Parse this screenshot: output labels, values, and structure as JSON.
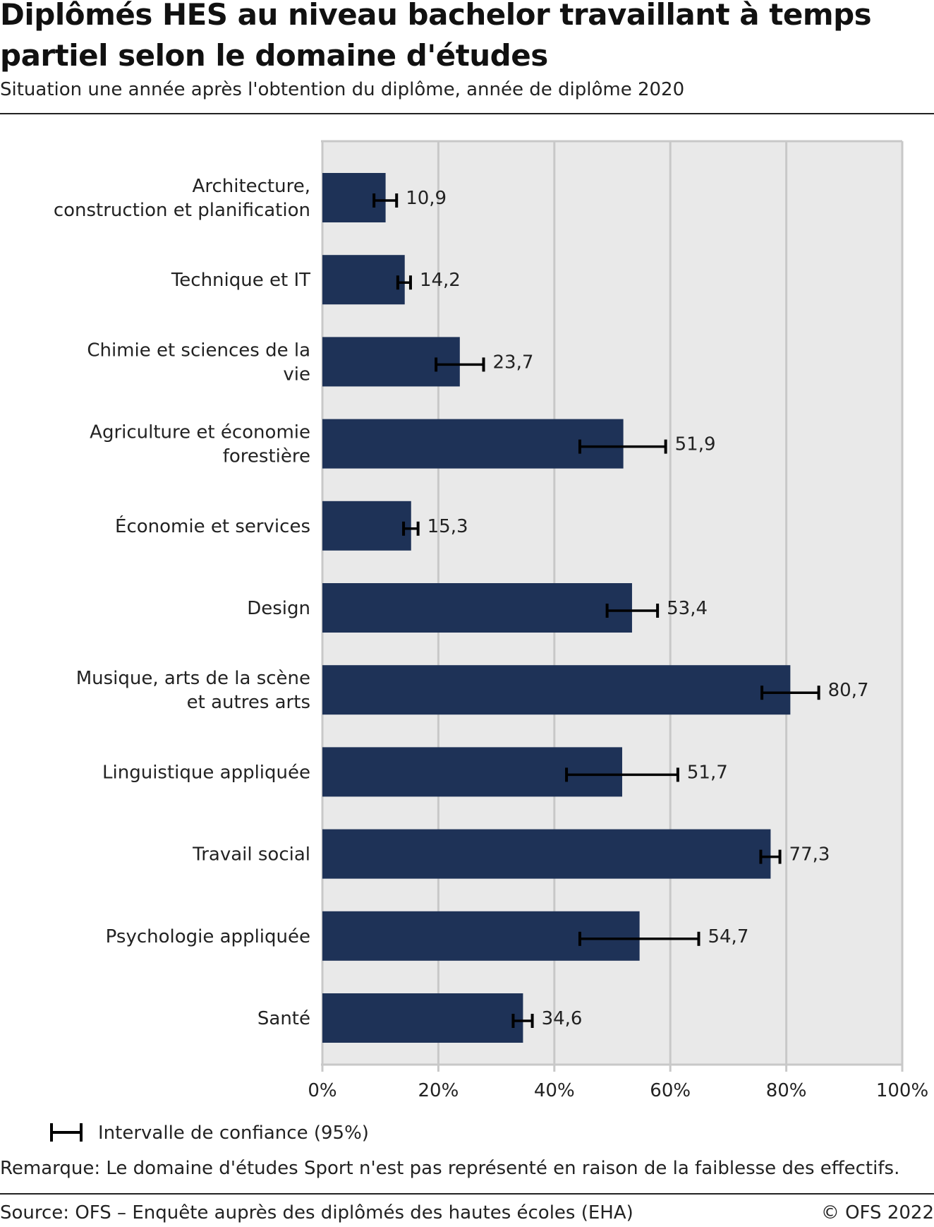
{
  "chart_data": {
    "type": "bar",
    "orientation": "horizontal",
    "title": "Diplômés HES au niveau bachelor travaillant à temps partiel selon le domaine d'études",
    "subtitle": "Situation une année après l'obtention du diplôme, année de diplôme 2020",
    "categories": [
      [
        "Architecture,",
        "construction et planification"
      ],
      [
        "Technique et IT"
      ],
      [
        "Chimie et sciences de la",
        "vie"
      ],
      [
        "Agriculture et économie",
        "forestière"
      ],
      [
        "Économie et services"
      ],
      [
        "Design"
      ],
      [
        "Musique, arts de la scène",
        "et autres arts"
      ],
      [
        "Linguistique appliquée"
      ],
      [
        "Travail social"
      ],
      [
        "Psychologie appliquée"
      ],
      [
        "Santé"
      ]
    ],
    "values": [
      10.9,
      14.2,
      23.7,
      51.9,
      15.3,
      53.4,
      80.7,
      51.7,
      77.3,
      54.7,
      34.6
    ],
    "value_labels": [
      "10,9",
      "14,2",
      "23,7",
      "51,9",
      "15,3",
      "53,4",
      "80,7",
      "51,7",
      "77,3",
      "54,7",
      "34,6"
    ],
    "ci_low": [
      8.9,
      13.0,
      19.6,
      44.4,
      14.0,
      49.1,
      75.8,
      42.1,
      75.6,
      44.4,
      32.9
    ],
    "ci_high": [
      12.8,
      15.2,
      27.8,
      59.2,
      16.5,
      57.8,
      85.6,
      61.3,
      78.9,
      64.9,
      36.2
    ],
    "xlim": [
      0,
      100
    ],
    "xticks": [
      "0%",
      "20%",
      "40%",
      "60%",
      "80%",
      "100%"
    ],
    "grid": true,
    "bar_color": "#1e3257",
    "plot_background": "#e9e9e9",
    "legend": {
      "label": "Intervalle de confiance (95%)",
      "placement": "bottom-left"
    }
  },
  "footer": {
    "remark": "Remarque: Le domaine d'études Sport n'est pas représenté en raison de la faiblesse des effectifs.",
    "source": "Source: OFS – Enquête auprès des diplômés des hautes écoles (EHA)",
    "copyright": "© OFS 2022"
  }
}
